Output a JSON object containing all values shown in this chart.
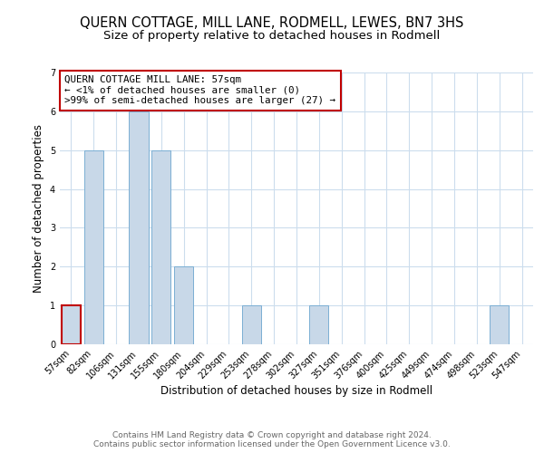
{
  "title": "QUERN COTTAGE, MILL LANE, RODMELL, LEWES, BN7 3HS",
  "subtitle": "Size of property relative to detached houses in Rodmell",
  "xlabel": "Distribution of detached houses by size in Rodmell",
  "ylabel": "Number of detached properties",
  "bar_labels": [
    "57sqm",
    "82sqm",
    "106sqm",
    "131sqm",
    "155sqm",
    "180sqm",
    "204sqm",
    "229sqm",
    "253sqm",
    "278sqm",
    "302sqm",
    "327sqm",
    "351sqm",
    "376sqm",
    "400sqm",
    "425sqm",
    "449sqm",
    "474sqm",
    "498sqm",
    "523sqm",
    "547sqm"
  ],
  "bar_values": [
    1,
    5,
    0,
    6,
    5,
    2,
    0,
    0,
    1,
    0,
    0,
    1,
    0,
    0,
    0,
    0,
    0,
    0,
    0,
    1,
    0
  ],
  "bar_color": "#c8d8e8",
  "bar_edge_color": "#7bafd4",
  "highlight_index": 0,
  "highlight_edge_color": "#c00000",
  "annotation_title": "QUERN COTTAGE MILL LANE: 57sqm",
  "annotation_line1": "← <1% of detached houses are smaller (0)",
  "annotation_line2": ">99% of semi-detached houses are larger (27) →",
  "annotation_box_edge_color": "#c00000",
  "ylim": [
    0,
    7
  ],
  "yticks": [
    0,
    1,
    2,
    3,
    4,
    5,
    6,
    7
  ],
  "footer_line1": "Contains HM Land Registry data © Crown copyright and database right 2024.",
  "footer_line2": "Contains public sector information licensed under the Open Government Licence v3.0.",
  "bg_color": "#ffffff",
  "grid_color": "#ccdded",
  "title_fontsize": 10.5,
  "subtitle_fontsize": 9.5,
  "axis_label_fontsize": 8.5,
  "tick_fontsize": 7,
  "annotation_fontsize": 7.8,
  "footer_fontsize": 6.5
}
